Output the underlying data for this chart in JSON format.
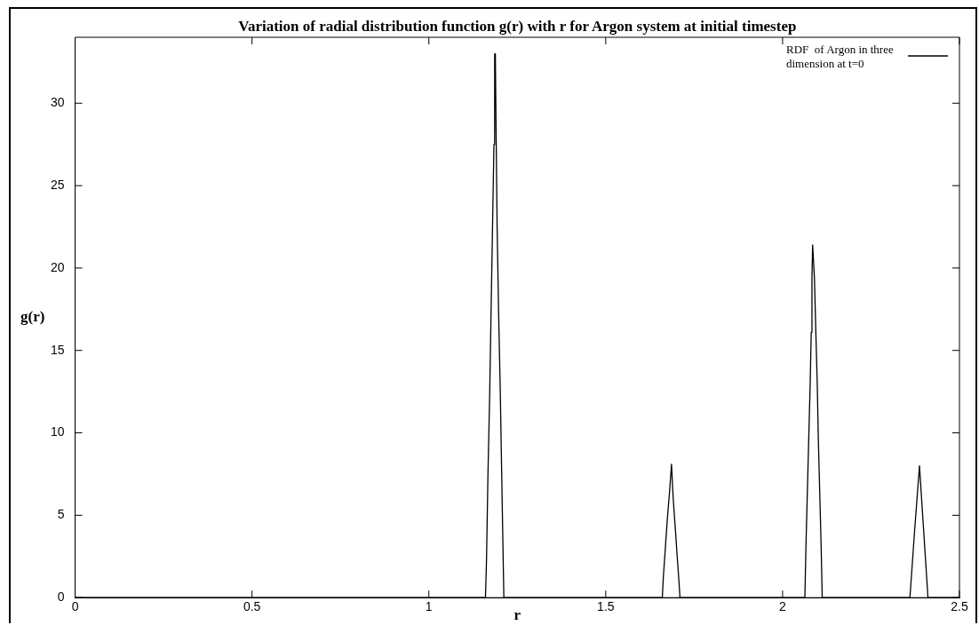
{
  "chart_data": {
    "type": "line",
    "title": "Variation of radial distribution function g(r) with r for Argon system at initial timestep",
    "xlabel": "r",
    "ylabel": "g(r)",
    "x": [
      0,
      1.16,
      1.163,
      1.167,
      1.172,
      1.176,
      1.18,
      1.184,
      1.186,
      1.188,
      1.19,
      1.193,
      1.197,
      1.202,
      1.206,
      1.212,
      1.66,
      1.663,
      1.667,
      1.671,
      1.675,
      1.68,
      1.686,
      1.69,
      1.694,
      1.698,
      1.702,
      1.706,
      1.71,
      2.063,
      2.066,
      2.07,
      2.074,
      2.078,
      2.081,
      2.083,
      2.085,
      2.09,
      2.094,
      2.098,
      2.101,
      2.105,
      2.109,
      2.112,
      2.36,
      2.373,
      2.387,
      2.399,
      2.411,
      2.5
    ],
    "series": [
      {
        "name": "RDF  of Argon in three dimension at t=0",
        "color": "#000000",
        "values": [
          0,
          0,
          2.3,
          7.4,
          12.4,
          17.5,
          22.5,
          27.5,
          33,
          33,
          28.4,
          22.5,
          17.5,
          12.4,
          7.4,
          0,
          0,
          1.3,
          2.5,
          3.8,
          5.0,
          6.3,
          8.1,
          6.3,
          5.0,
          3.8,
          2.5,
          1.3,
          0,
          0,
          3.1,
          6.4,
          9.7,
          13,
          16.1,
          19.4,
          21.4,
          19.4,
          16.1,
          13,
          9.7,
          6.4,
          3.1,
          0,
          0,
          4,
          8.0,
          4,
          0,
          0
        ]
      }
    ],
    "xlim": [
      0,
      2.5
    ],
    "xticks": [
      0,
      0.5,
      1,
      1.5,
      2,
      2.5
    ],
    "ylim": [
      0,
      34
    ],
    "yticks": [
      0,
      5,
      10,
      15,
      20,
      25,
      30
    ],
    "grid": false,
    "legend": "top right",
    "marker": "none",
    "line_style": "solid"
  }
}
